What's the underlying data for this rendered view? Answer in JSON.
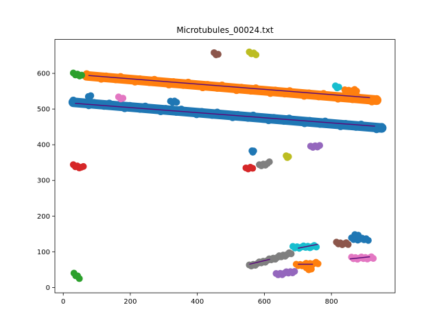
{
  "chart_data": {
    "type": "scatter",
    "title": "Microtubules_00024.txt",
    "xlabel": "",
    "ylabel": "",
    "xlim": [
      -25,
      990
    ],
    "ylim": [
      -15,
      695
    ],
    "xticks": [
      0,
      200,
      400,
      600,
      800
    ],
    "yticks": [
      0,
      100,
      200,
      300,
      400,
      500,
      600
    ],
    "grid": false,
    "clusters": [
      {
        "color": "#1f77b4",
        "kind": "band",
        "x": [
          30,
          950
        ],
        "y": [
          519,
          447
        ],
        "thickness": 14
      },
      {
        "color": "#ff7f0e",
        "kind": "band",
        "x": [
          70,
          935
        ],
        "y": [
          593,
          525
        ],
        "thickness": 14
      },
      {
        "color": "#1f77b4",
        "kind": "blob",
        "x": [
          75,
          82
        ],
        "y": [
          532,
          536
        ]
      },
      {
        "color": "#1f77b4",
        "kind": "blob",
        "x": [
          320,
          338
        ],
        "y": [
          519,
          522
        ]
      },
      {
        "color": "#ff7f0e",
        "kind": "blob",
        "x": [
          840,
          875
        ],
        "y": [
          551,
          552
        ]
      },
      {
        "color": "#2ca02c",
        "kind": "blob",
        "x": [
          30,
          55
        ],
        "y": [
          598,
          595
        ]
      },
      {
        "color": "#2ca02c",
        "kind": "blob",
        "x": [
          32,
          48
        ],
        "y": [
          37,
          28
        ]
      },
      {
        "color": "#8c564b",
        "kind": "blob",
        "x": [
          450,
          462
        ],
        "y": [
          655,
          652
        ]
      },
      {
        "color": "#bcbd22",
        "kind": "blob",
        "x": [
          555,
          575
        ],
        "y": [
          657,
          655
        ]
      },
      {
        "color": "#17becf",
        "kind": "blob",
        "x": [
          812,
          822
        ],
        "y": [
          562,
          560
        ]
      },
      {
        "color": "#e377c2",
        "kind": "blob",
        "x": [
          165,
          178
        ],
        "y": [
          531,
          529
        ]
      },
      {
        "color": "#d62728",
        "kind": "blob",
        "x": [
          30,
          60
        ],
        "y": [
          341,
          336
        ]
      },
      {
        "color": "#d62728",
        "kind": "blob",
        "x": [
          545,
          565
        ],
        "y": [
          332,
          337
        ]
      },
      {
        "color": "#1f77b4",
        "kind": "blob",
        "x": [
          563,
          568
        ],
        "y": [
          380,
          381
        ]
      },
      {
        "color": "#7f7f7f",
        "kind": "blob",
        "x": [
          585,
          615
        ],
        "y": [
          341,
          349
        ]
      },
      {
        "color": "#bcbd22",
        "kind": "blob",
        "x": [
          665,
          672
        ],
        "y": [
          366,
          365
        ]
      },
      {
        "color": "#9467bd",
        "kind": "blob",
        "x": [
          738,
          765
        ],
        "y": [
          393,
          398
        ]
      },
      {
        "color": "#8c564b",
        "kind": "blob",
        "x": [
          815,
          850
        ],
        "y": [
          124,
          122
        ]
      },
      {
        "color": "#1f77b4",
        "kind": "blob",
        "x": [
          860,
          910
        ],
        "y": [
          136,
          135
        ]
      },
      {
        "color": "#1f77b4",
        "kind": "blob",
        "x": [
          870,
          880
        ],
        "y": [
          145,
          145
        ]
      },
      {
        "color": "#e377c2",
        "kind": "blob",
        "x": [
          860,
          925
        ],
        "y": [
          82,
          83
        ]
      },
      {
        "color": "#17becf",
        "kind": "blob",
        "x": [
          685,
          755
        ],
        "y": [
          112,
          115
        ]
      },
      {
        "color": "#7f7f7f",
        "kind": "blob",
        "x": [
          555,
          680
        ],
        "y": [
          60,
          96
        ]
      },
      {
        "color": "#ff7f0e",
        "kind": "blob",
        "x": [
          695,
          760
        ],
        "y": [
          62,
          68
        ]
      },
      {
        "color": "#ff7f0e",
        "kind": "blob",
        "x": [
          725,
          740
        ],
        "y": [
          52,
          50
        ]
      },
      {
        "color": "#9467bd",
        "kind": "blob",
        "x": [
          635,
          690
        ],
        "y": [
          36,
          45
        ]
      }
    ],
    "fits": [
      {
        "color": "#5b0c7a",
        "x": [
          35,
          930
        ],
        "y": [
          516,
          452
        ]
      },
      {
        "color": "#5b0c7a",
        "x": [
          75,
          915
        ],
        "y": [
          594,
          532
        ]
      },
      {
        "color": "#5b0c7a",
        "x": [
          555,
          617
        ],
        "y": [
          65,
          79
        ]
      },
      {
        "color": "#5b0c7a",
        "x": [
          700,
          760
        ],
        "y": [
          110,
          121
        ]
      },
      {
        "color": "#5b0c7a",
        "x": [
          700,
          745
        ],
        "y": [
          65,
          65
        ]
      },
      {
        "color": "#5b0c7a",
        "x": [
          855,
          915
        ],
        "y": [
          80,
          86
        ]
      }
    ]
  }
}
